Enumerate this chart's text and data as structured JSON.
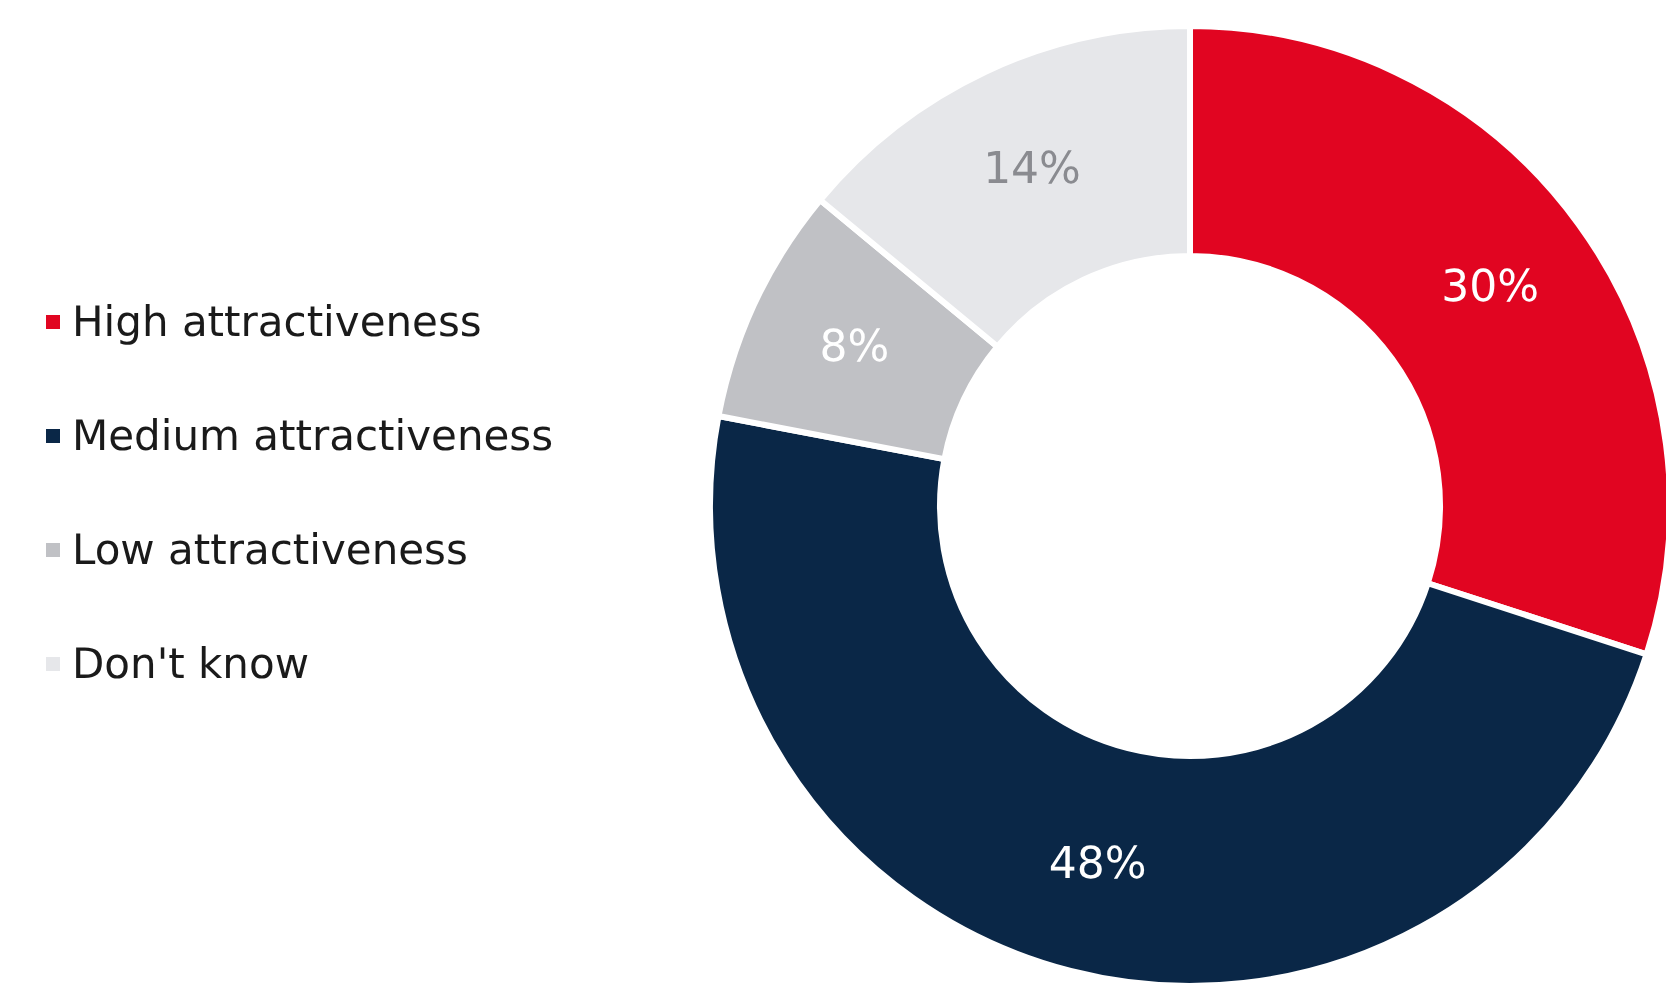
{
  "chart_data": {
    "type": "donut",
    "categories": [
      "High attractiveness",
      "Medium attractiveness",
      "Low attractiveness",
      "Don't know"
    ],
    "values": [
      30,
      48,
      8,
      14
    ],
    "colors": [
      "#e10521",
      "#0a2747",
      "#c0c1c5",
      "#e6e7ea"
    ],
    "value_labels": [
      "30%",
      "48%",
      "8%",
      "14%"
    ],
    "legend": "left"
  }
}
